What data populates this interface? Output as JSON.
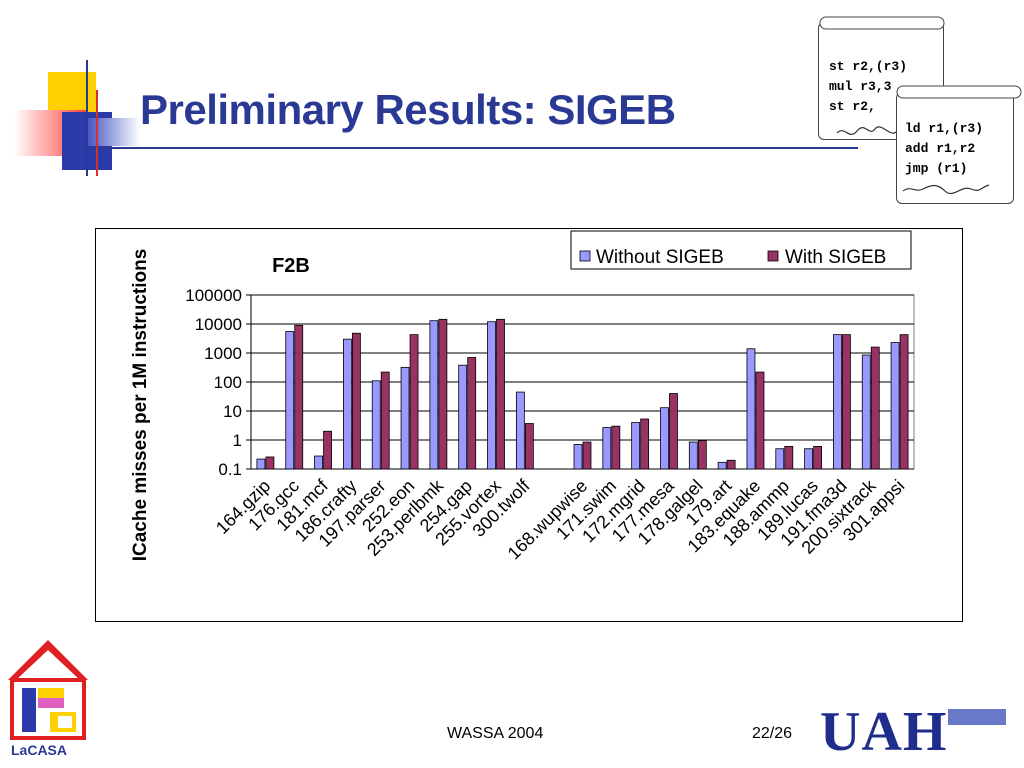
{
  "slide": {
    "title": "Preliminary Results: SIGEB",
    "footer_center": "WASSA 2004",
    "footer_page": "22/26",
    "logo_left_label": "LaCASA",
    "logo_right_text": "UAH"
  },
  "scrolls": {
    "back": [
      "st r2,(r3)",
      "mul r3,3",
      "st r2,"
    ],
    "front": [
      "ld r1,(r3)",
      "add r1,r2",
      "jmp (r1)"
    ]
  },
  "colors": {
    "title": "#2a3a94",
    "without": "#9999ff",
    "with": "#993366"
  },
  "chart_data": {
    "type": "bar",
    "title": "F2B",
    "ylabel": "ICache misses per 1M instructions",
    "xlabel": "",
    "yscale": "log",
    "ylim": [
      0.1,
      100000
    ],
    "yticks": [
      "100000",
      "10000",
      "1000",
      "100",
      "10",
      "1",
      "0.1"
    ],
    "legend_position": "top-right",
    "categories": [
      "164.gzip",
      "176.gcc",
      "181.mcf",
      "186.crafty",
      "197.parser",
      "252.eon",
      "253.perlbmk",
      "254.gap",
      "255.vortex",
      "300.twolf",
      "",
      "168.wupwise",
      "171.swim",
      "172.mgrid",
      "177.mesa",
      "178.galgel",
      "179.art",
      "183.equake",
      "188.ammp",
      "189.lucas",
      "191.fma3d",
      "200.sixtrack",
      "301.appsi"
    ],
    "series": [
      {
        "name": "Without SIGEB",
        "values": [
          0.22,
          5500,
          0.28,
          3000,
          110,
          320,
          13000,
          380,
          12000,
          45,
          null,
          0.7,
          2.7,
          4,
          13,
          0.85,
          0.17,
          1400,
          0.5,
          0.5,
          4300,
          850,
          2300
        ]
      },
      {
        "name": "With SIGEB",
        "values": [
          0.26,
          9000,
          2,
          4800,
          220,
          4300,
          14500,
          700,
          14500,
          3.7,
          null,
          0.85,
          3,
          5.3,
          40,
          0.95,
          0.2,
          220,
          0.6,
          0.6,
          4300,
          1600,
          4300
        ]
      }
    ]
  }
}
